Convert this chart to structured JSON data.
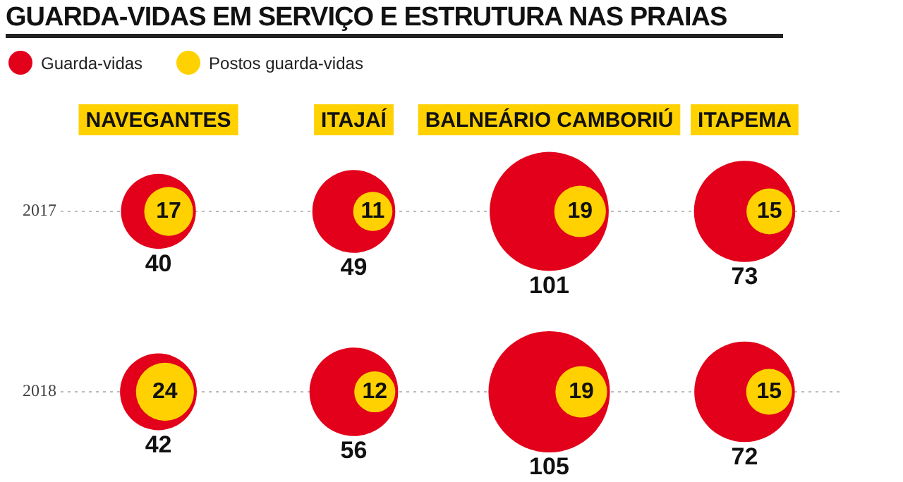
{
  "chart_data": {
    "type": "bubble",
    "title": "GUARDA-VIDAS EM SERVIÇO E ESTRUTURA NAS PRAIAS",
    "categories": [
      "NAVEGANTES",
      "ITAJAÍ",
      "BALNEÁRIO CAMBORIÚ",
      "ITAPEMA"
    ],
    "ylim": [
      2018,
      2017
    ],
    "yticks": [
      2017,
      2018
    ],
    "grid": "y",
    "legend": "top left",
    "tick_labels": "y",
    "series": [
      {
        "name": "Guarda-vidas",
        "color": "#e2001a",
        "x": [
          "NAVEGANTES",
          "ITAJAÍ",
          "BALNEÁRIO CAMBORIÚ",
          "ITAPEMA",
          "NAVEGANTES",
          "ITAJAÍ",
          "BALNEÁRIO CAMBORIÚ",
          "ITAPEMA"
        ],
        "values": [
          2017,
          2017,
          2017,
          2017,
          2018,
          2018,
          2018,
          2018
        ],
        "sizes": [
          40,
          49,
          101,
          73,
          42,
          56,
          105,
          72
        ],
        "value_labels": [
          "40",
          "49",
          "101",
          "73",
          "42",
          "56",
          "105",
          "72"
        ]
      },
      {
        "name": "Postos guarda-vidas",
        "color": "#ffd100",
        "x": [
          "NAVEGANTES",
          "ITAJAÍ",
          "BALNEÁRIO CAMBORIÚ",
          "ITAPEMA",
          "NAVEGANTES",
          "ITAJAÍ",
          "BALNEÁRIO CAMBORIÚ",
          "ITAPEMA"
        ],
        "values": [
          2017,
          2017,
          2017,
          2017,
          2018,
          2018,
          2018,
          2018
        ],
        "sizes": [
          17,
          11,
          19,
          15,
          24,
          12,
          19,
          15
        ],
        "value_labels": [
          "17",
          "11",
          "19",
          "15",
          "24",
          "12",
          "19",
          "15"
        ]
      }
    ]
  }
}
